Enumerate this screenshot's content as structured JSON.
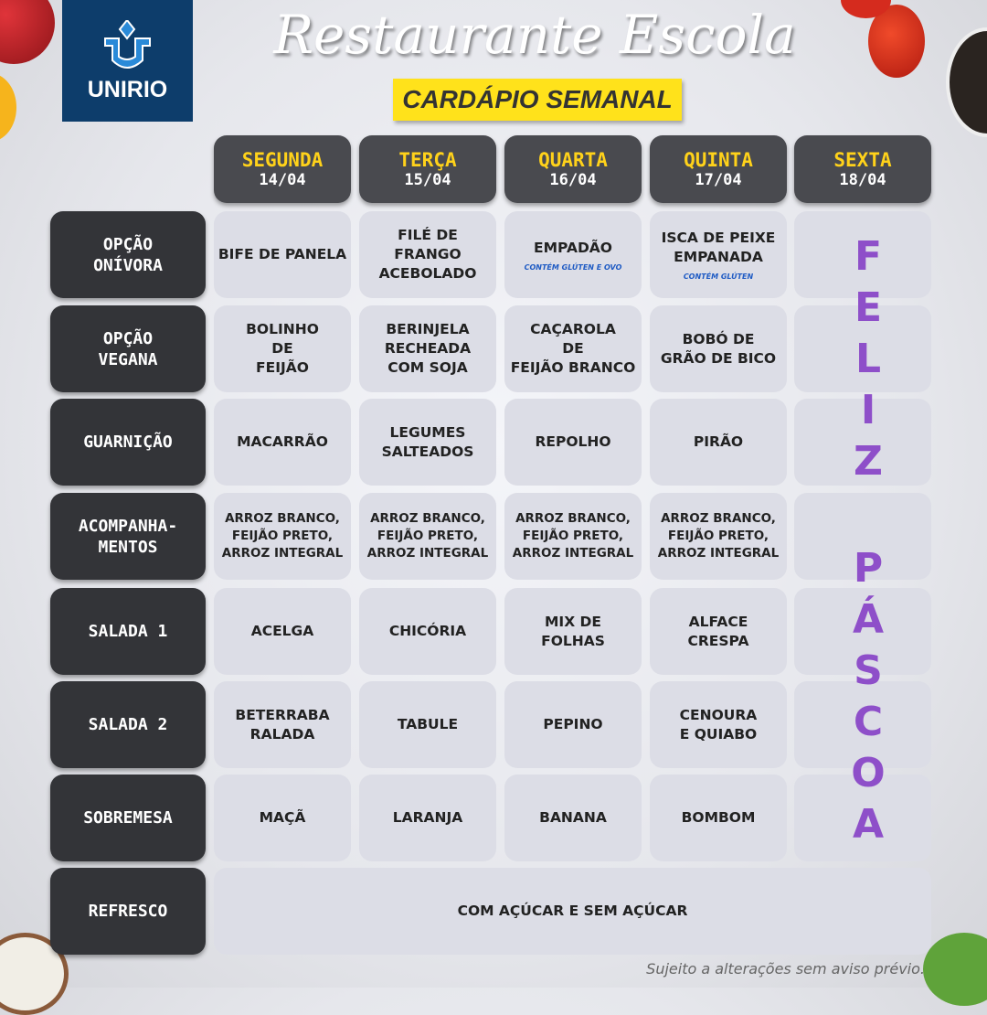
{
  "logo": {
    "text": "UNIRIO"
  },
  "header": {
    "title": "Restaurante Escola",
    "subtitle": "CARDÁPIO SEMANAL"
  },
  "days": [
    {
      "name": "SEGUNDA",
      "date": "14/04"
    },
    {
      "name": "TERÇA",
      "date": "15/04"
    },
    {
      "name": "QUARTA",
      "date": "16/04"
    },
    {
      "name": "QUINTA",
      "date": "17/04"
    },
    {
      "name": "SEXTA",
      "date": "18/04"
    }
  ],
  "rows": [
    {
      "label": "OPÇÃO\nONÍVORA",
      "items": [
        {
          "text": "BIFE DE PANELA"
        },
        {
          "text": "FILÉ DE\nFRANGO\nACEBOLADO"
        },
        {
          "text": "EMPADÃO",
          "note": "CONTÉM GLÚTEN E OVO"
        },
        {
          "text": "ISCA DE PEIXE\nEMPANADA",
          "note": "CONTÉM GLÚTEN"
        }
      ]
    },
    {
      "label": "OPÇÃO\nVEGANA",
      "items": [
        {
          "text": "BOLINHO\nDE\nFEIJÃO"
        },
        {
          "text": "BERINJELA\nRECHEADA\nCOM SOJA"
        },
        {
          "text": "CAÇAROLA\nDE\nFEIJÃO BRANCO"
        },
        {
          "text": "BOBÓ DE\nGRÃO DE BICO"
        }
      ]
    },
    {
      "label": "GUARNIÇÃO",
      "items": [
        {
          "text": "MACARRÃO"
        },
        {
          "text": "LEGUMES\nSALTEADOS"
        },
        {
          "text": "REPOLHO"
        },
        {
          "text": "PIRÃO"
        }
      ]
    },
    {
      "label": "ACOMPANHA-\nMENTOS",
      "small": true,
      "items": [
        {
          "text": "ARROZ BRANCO,\nFEIJÃO PRETO,\nARROZ INTEGRAL"
        },
        {
          "text": "ARROZ BRANCO,\nFEIJÃO PRETO,\nARROZ INTEGRAL"
        },
        {
          "text": "ARROZ BRANCO,\nFEIJÃO PRETO,\nARROZ INTEGRAL"
        },
        {
          "text": "ARROZ BRANCO,\nFEIJÃO PRETO,\nARROZ INTEGRAL"
        }
      ]
    },
    {
      "label": "SALADA 1",
      "items": [
        {
          "text": "ACELGA"
        },
        {
          "text": "CHICÓRIA"
        },
        {
          "text": "MIX DE\nFOLHAS"
        },
        {
          "text": "ALFACE\nCRESPA"
        }
      ]
    },
    {
      "label": "SALADA 2",
      "items": [
        {
          "text": "BETERRABA\nRALADA"
        },
        {
          "text": "TABULE"
        },
        {
          "text": "PEPINO"
        },
        {
          "text": "CENOURA\nE QUIABO"
        }
      ]
    },
    {
      "label": "SOBREMESA",
      "items": [
        {
          "text": "MAÇÃ"
        },
        {
          "text": "LARANJA"
        },
        {
          "text": "BANANA"
        },
        {
          "text": "BOMBOM"
        }
      ]
    }
  ],
  "refresco": {
    "label": "REFRESCO",
    "text": "COM AÇÚCAR E SEM AÇÚCAR"
  },
  "holiday": {
    "text": "FELIZ PÁSCOA",
    "color": "#8e4fc9"
  },
  "footer": "Sujeito a alterações sem aviso prévio."
}
